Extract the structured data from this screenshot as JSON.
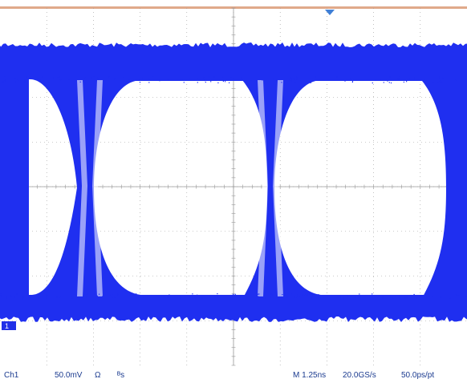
{
  "chart_data": {
    "type": "eye-diagram",
    "grid": true,
    "channel": "Ch1",
    "volts_per_div": "50.0mV",
    "coupling": "Ω",
    "bandwidth": "ᴮs",
    "horizontal": "M 1.25ns",
    "sample_rate": "20.0GS/s",
    "resolution": "50.0ps/pt",
    "ground_marker": "1",
    "colors": {
      "trace": "#1f2ff0",
      "grid": "#9a9a9a",
      "top_bar": "#e0a98a",
      "marker": "#3f7fd6",
      "text": "#1a3a8f"
    }
  }
}
